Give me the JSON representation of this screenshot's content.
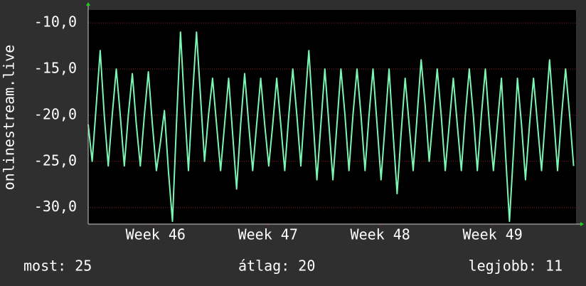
{
  "chart_data": {
    "type": "line",
    "y_label": "onlinestream.live",
    "x": [
      0,
      0.25,
      0.5,
      0.75,
      1,
      1.25,
      1.5,
      1.75,
      2,
      2.25,
      2.5,
      2.75,
      3,
      3.25,
      3.5,
      3.75,
      4,
      4.25,
      4.5,
      4.75,
      5,
      5.25,
      5.5,
      5.75,
      6,
      6.25,
      6.5,
      6.75,
      7,
      7.25,
      7.5,
      7.75,
      8,
      8.25,
      8.5,
      8.75,
      9,
      9.25,
      9.5,
      9.75,
      10,
      10.25,
      10.5,
      10.75,
      11,
      11.25,
      11.5,
      11.75,
      12,
      12.25,
      12.5,
      12.75,
      13,
      13.25,
      13.5,
      13.75,
      14,
      14.25,
      14.5,
      14.75,
      15,
      15.25,
      15.5,
      15.75,
      16,
      16.25,
      16.5,
      16.75,
      17,
      17.25,
      17.5,
      17.75,
      18,
      18.25,
      18.5,
      18.75,
      19,
      19.25,
      19.5,
      19.75,
      20,
      20.25,
      20.5,
      20.75,
      21,
      21.25,
      21.5,
      21.75,
      22,
      22.25,
      22.5,
      22.75,
      23,
      23.25,
      23.5,
      23.75,
      24,
      24.25,
      24.5,
      24.75,
      25,
      25.25,
      25.5,
      25.75,
      26,
      26.25,
      26.5,
      26.75,
      27,
      27.25,
      27.5,
      27.75,
      28,
      28.25,
      28.5,
      28.75,
      29,
      29.25,
      29.5,
      29.75,
      30,
      30.25
    ],
    "series": [
      {
        "color": "#7cf5b2",
        "values": [
          -21,
          -25,
          -19,
          -13,
          -20,
          -25.5,
          -20,
          -15,
          -20,
          -25.5,
          -20,
          -15.5,
          -21,
          -25.5,
          -20,
          -15.3,
          -21,
          -26,
          -23,
          -19.5,
          -26,
          -31.5,
          -21,
          -11,
          -19,
          -26,
          -18,
          -11,
          -18,
          -25,
          -20,
          -16,
          -21,
          -26,
          -21,
          -16,
          -22,
          -28,
          -21,
          -15.5,
          -21,
          -26,
          -21,
          -16,
          -21,
          -25.5,
          -21,
          -16,
          -21,
          -26,
          -20,
          -15,
          -20,
          -25.5,
          -19,
          -13,
          -20,
          -27,
          -21,
          -15,
          -21,
          -27,
          -21,
          -15,
          -20,
          -26,
          -20,
          -15,
          -20,
          -26,
          -20,
          -15,
          -21,
          -27,
          -21,
          -15,
          -22,
          -28.5,
          -22,
          -16,
          -21,
          -26,
          -20,
          -14,
          -19,
          -25,
          -20,
          -15,
          -20,
          -26,
          -21,
          -16,
          -21,
          -26,
          -20,
          -15,
          -20,
          -26,
          -20,
          -15,
          -21,
          -26,
          -21,
          -16,
          -24,
          -31.5,
          -24,
          -16,
          -21,
          -27,
          -21,
          -16,
          -21,
          -26,
          -20,
          -14,
          -20,
          -26,
          -20,
          -15,
          -20,
          -25.5
        ]
      }
    ],
    "xlim": [
      0,
      30.4
    ],
    "xticks": [
      {
        "value": 4.2,
        "label": "Week 46"
      },
      {
        "value": 11.2,
        "label": "Week 47"
      },
      {
        "value": 18.2,
        "label": "Week 48"
      },
      {
        "value": 25.2,
        "label": "Week 49"
      }
    ],
    "ylim": [
      -31.8,
      -8.6
    ],
    "yticks": [
      {
        "value": -30,
        "label": "-30,0"
      },
      {
        "value": -25,
        "label": "-25,0"
      },
      {
        "value": -20,
        "label": "-20,0"
      },
      {
        "value": -15,
        "label": "-15,0"
      },
      {
        "value": -10,
        "label": "-10,0"
      }
    ],
    "grid": true,
    "footer": [
      "most: 25",
      "átlag: 20",
      "legjobb: 11"
    ]
  }
}
